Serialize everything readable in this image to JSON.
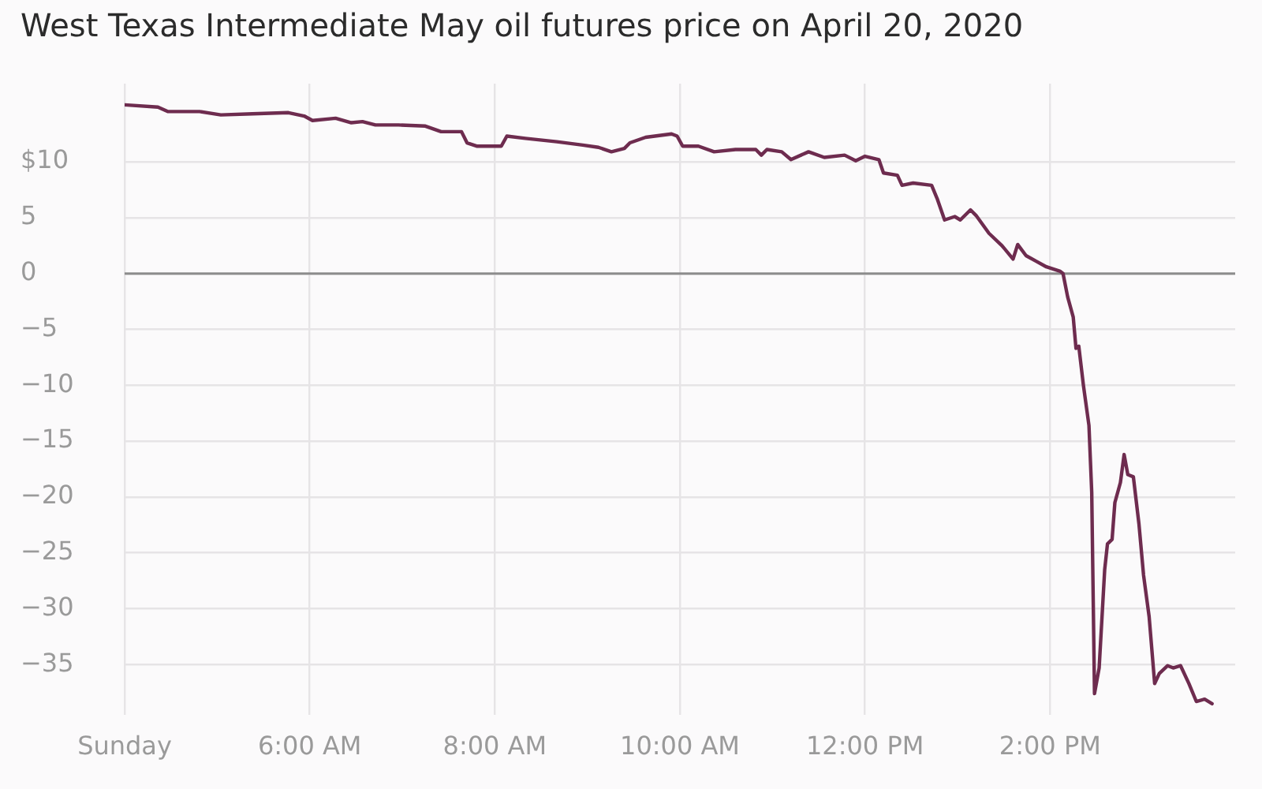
{
  "chart_data": {
    "type": "line",
    "title": "West Texas Intermediate May oil futures price on April 20, 2020",
    "x": [
      4.0,
      4.36,
      4.47,
      4.81,
      5.04,
      5.38,
      5.77,
      5.94,
      6.03,
      6.28,
      6.45,
      6.57,
      6.71,
      6.96,
      7.25,
      7.42,
      7.64,
      7.7,
      7.81,
      8.07,
      8.13,
      8.33,
      8.67,
      8.95,
      9.12,
      9.26,
      9.4,
      9.46,
      9.63,
      9.91,
      9.97,
      10.03,
      10.2,
      10.37,
      10.6,
      10.82,
      10.88,
      10.94,
      11.1,
      11.2,
      11.39,
      11.56,
      11.78,
      11.9,
      12.0,
      12.15,
      12.2,
      12.35,
      12.4,
      12.52,
      12.72,
      12.78,
      12.86,
      12.97,
      13.03,
      13.14,
      13.2,
      13.34,
      13.48,
      13.6,
      13.65,
      13.74,
      13.85,
      13.96,
      14.11,
      14.14,
      14.19,
      14.25,
      14.28,
      14.31,
      14.36,
      14.42,
      14.45,
      14.48,
      14.53,
      14.59,
      14.62,
      14.67,
      14.7,
      14.76,
      14.8,
      14.84,
      14.9,
      14.96,
      15.01,
      15.07,
      15.13,
      15.18,
      15.27,
      15.33,
      15.41,
      15.5,
      15.58,
      15.67,
      15.75
    ],
    "values": [
      15.1,
      14.9,
      14.5,
      14.5,
      14.2,
      14.3,
      14.4,
      14.1,
      13.7,
      13.9,
      13.5,
      13.6,
      13.3,
      13.3,
      13.2,
      12.7,
      12.7,
      11.7,
      11.4,
      11.4,
      12.3,
      12.1,
      11.8,
      11.5,
      11.3,
      10.9,
      11.2,
      11.7,
      12.2,
      12.5,
      12.3,
      11.4,
      11.4,
      10.9,
      11.1,
      11.1,
      10.6,
      11.1,
      10.9,
      10.2,
      10.9,
      10.4,
      10.6,
      10.1,
      10.5,
      10.2,
      9.0,
      8.8,
      7.9,
      8.1,
      7.9,
      6.7,
      4.8,
      5.1,
      4.8,
      5.7,
      5.2,
      3.6,
      2.5,
      1.3,
      2.6,
      1.6,
      1.1,
      0.6,
      0.2,
      0.0,
      -2.1,
      -3.9,
      -6.7,
      -6.5,
      -10.0,
      -13.6,
      -19.6,
      -37.6,
      -35.3,
      -26.5,
      -24.2,
      -23.8,
      -20.5,
      -18.7,
      -16.2,
      -18.0,
      -18.2,
      -22.4,
      -27.0,
      -30.7,
      -36.7,
      -35.8,
      -35.1,
      -35.3,
      -35.1,
      -36.7,
      -38.3,
      -38.1,
      -38.5
    ],
    "color": "#6e2c4f",
    "xlim": [
      4,
      16
    ],
    "xticks": [
      {
        "value": 4,
        "label": "Sunday"
      },
      {
        "value": 6,
        "label": "6:00 AM"
      },
      {
        "value": 8,
        "label": "8:00 AM"
      },
      {
        "value": 10,
        "label": "10:00 AM"
      },
      {
        "value": 12,
        "label": "12:00 PM"
      },
      {
        "value": 14,
        "label": "2:00 PM"
      }
    ],
    "ylim": [
      -39.5,
      17
    ],
    "yticks": [
      {
        "value": 10,
        "label": "$10"
      },
      5,
      0,
      {
        "value": -5,
        "label": "−5"
      },
      {
        "value": -10,
        "label": "−10"
      },
      {
        "value": -15,
        "label": "−15"
      },
      {
        "value": -20,
        "label": "−20"
      },
      {
        "value": -25,
        "label": "−25"
      },
      {
        "value": -30,
        "label": "−30"
      },
      {
        "value": -35,
        "label": "−35"
      }
    ],
    "grid": true,
    "ref_lines": [
      {
        "axis": "y",
        "value": 0
      }
    ]
  }
}
